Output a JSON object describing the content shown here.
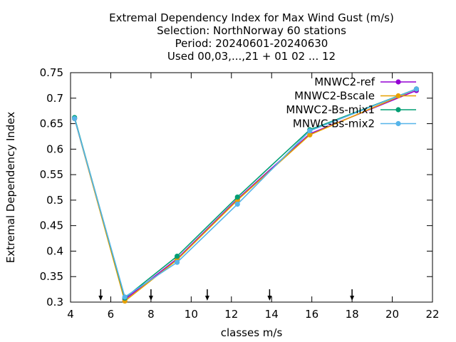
{
  "chart_data": {
    "type": "line",
    "title_lines": [
      "Extremal Dependency Index  for Max Wind Gust (m/s)",
      "Selection: NorthNorway     60 stations",
      "Period: 20240601-20240630",
      "Used 00,03,...,21 + 01 02 ... 12"
    ],
    "xlabel": "classes m/s",
    "ylabel": "Extremal Dependency Index",
    "xlim": [
      4,
      22
    ],
    "ylim": [
      0.3,
      0.75
    ],
    "xticks": [
      "4",
      "6",
      "8",
      "10",
      "12",
      "14",
      "16",
      "18",
      "20",
      "22"
    ],
    "yticks": [
      "0.3",
      "0.35",
      "0.4",
      "0.45",
      "0.5",
      "0.55",
      "0.6",
      "0.65",
      "0.7",
      "0.75"
    ],
    "legend_position": "top-right",
    "grid": false,
    "x": [
      4.2,
      6.7,
      9.3,
      12.3,
      15.9,
      21.2
    ],
    "series": [
      {
        "name": "MNWC2-ref",
        "color": "#9400d3",
        "values": [
          0.66,
          0.305,
          0.385,
          0.502,
          0.63,
          0.715
        ]
      },
      {
        "name": "MNWC2-Bscale",
        "color": "#e69f00",
        "values": [
          0.66,
          0.302,
          0.383,
          0.5,
          0.628,
          0.718
        ]
      },
      {
        "name": "MNWC2-Bs-mix1",
        "color": "#009e73",
        "values": [
          0.662,
          0.308,
          0.39,
          0.506,
          0.638,
          0.718
        ]
      },
      {
        "name": "MNWC-Bs-mix2",
        "color": "#56b4e9",
        "values": [
          0.66,
          0.31,
          0.378,
          0.492,
          0.636,
          0.718
        ]
      }
    ],
    "arrow_markers_x": [
      5.5,
      8.0,
      10.8,
      13.9,
      18.0
    ]
  }
}
